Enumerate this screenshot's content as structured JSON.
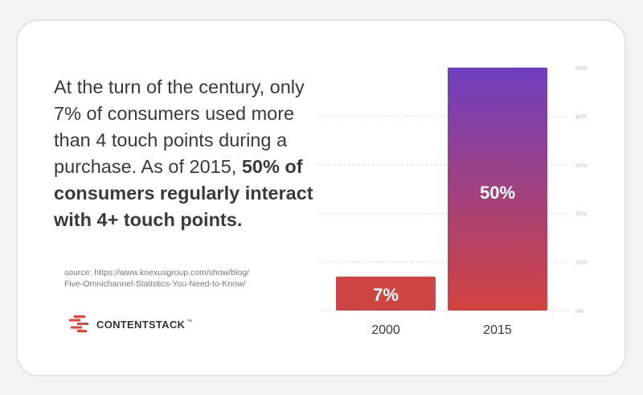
{
  "headline": {
    "part1": "At the turn of the century, only 7% of consumers used more than 4 touch points during a purchase. As of 2015, ",
    "bold": "50% of consumers regularly interact with 4+ touch points."
  },
  "source": {
    "line1": "source: https://www.knexusgroup.com/show/blog/",
    "line2": "Five-Omnichannel-Statistics-You-Need-to-Know/"
  },
  "logo": {
    "text": "CONTENTSTACK",
    "tm": "™"
  },
  "colors": {
    "bar_top_2015": "#6f3fc0",
    "bar_bottom": "#d2433f",
    "bar_2000": "#cc4543",
    "gridline": "#d9d9d9",
    "tick": "#bdbdbd",
    "text": "#3a3a3a"
  },
  "chart_data": {
    "type": "bar",
    "categories": [
      "2000",
      "2015"
    ],
    "values": [
      7,
      50
    ],
    "data_labels": [
      "7%",
      "50%"
    ],
    "y_ticks": [
      "0%",
      "10%",
      "20%",
      "30%",
      "40%",
      "50%"
    ],
    "ylim": [
      0,
      50
    ],
    "grid": true,
    "title": "",
    "xlabel": "",
    "ylabel": ""
  }
}
